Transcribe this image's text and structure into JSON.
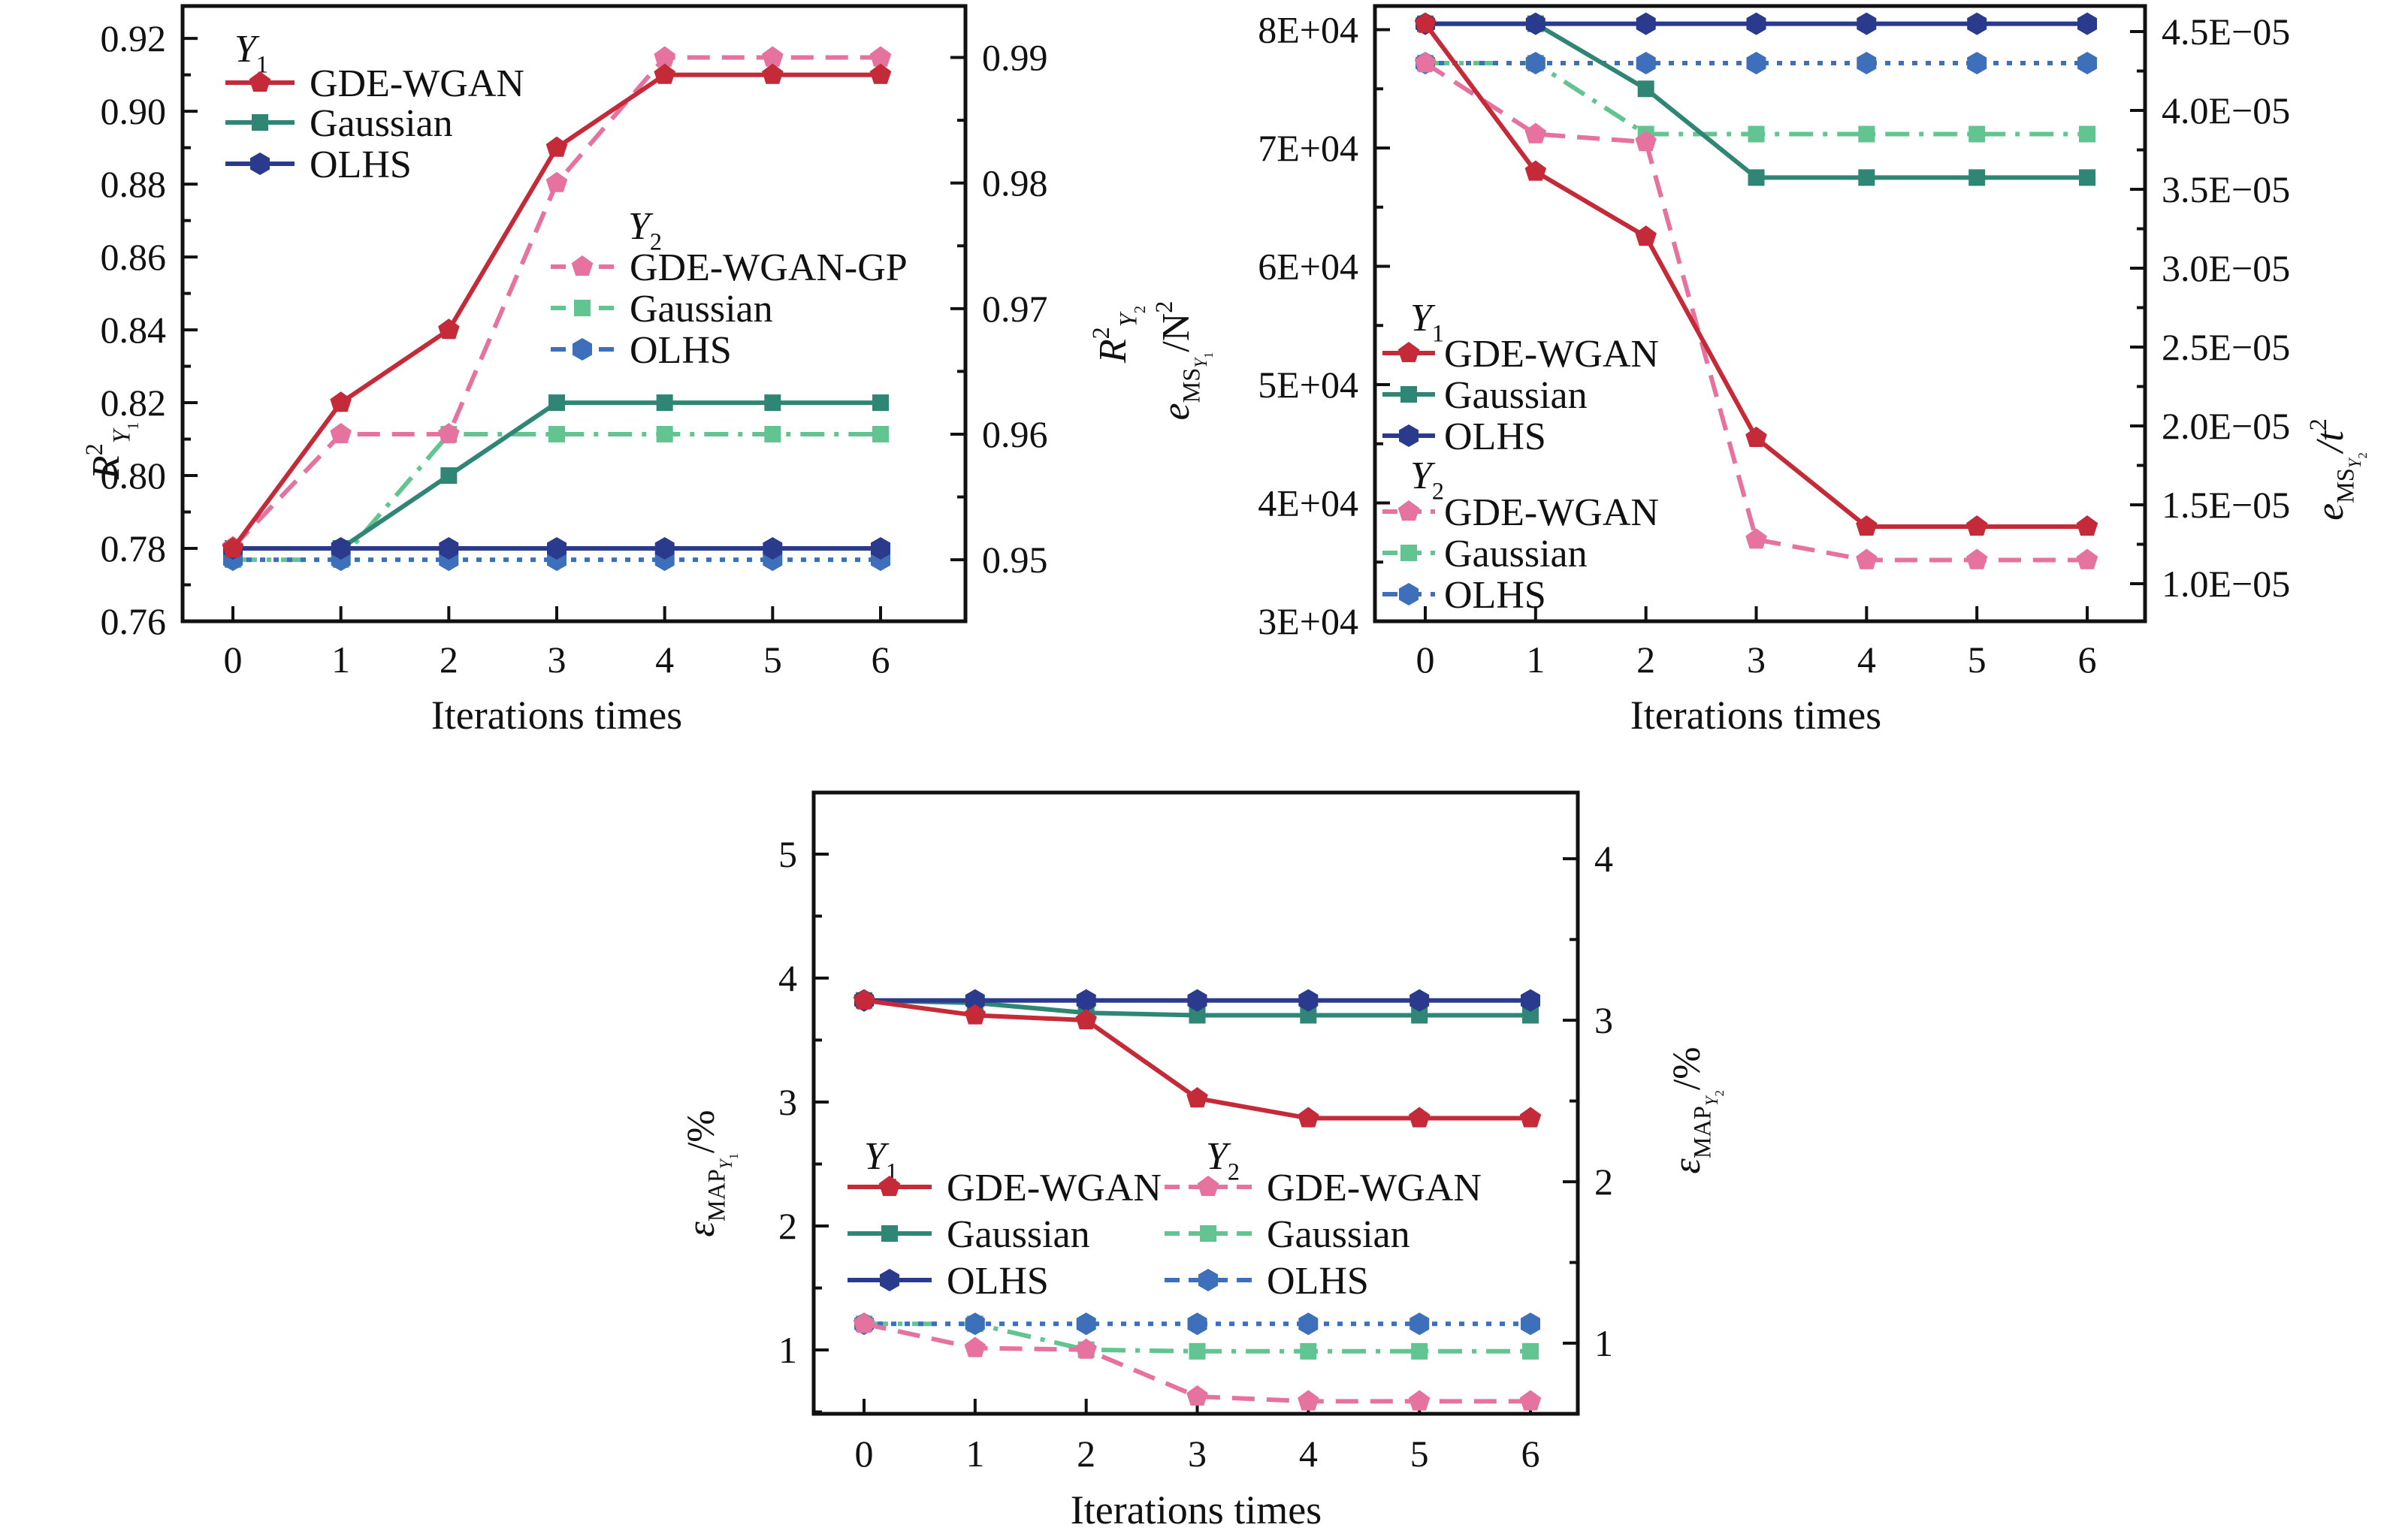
{
  "figure": {
    "background": "#ffffff"
  },
  "colors": {
    "red": "#c52a38",
    "teal": "#2f8674",
    "navy": "#2a3a8c",
    "pink": "#e5729f",
    "green": "#62c591",
    "blue": "#3d6fba",
    "ink": "#111111"
  },
  "chart_data": [
    {
      "id": "r2",
      "type": "line",
      "x": [
        0,
        1,
        2,
        3,
        4,
        5,
        6
      ],
      "x_tick_labels": [
        "0",
        "1",
        "2",
        "3",
        "4",
        "5",
        "6"
      ],
      "xlabel": "Iterations times",
      "left_axis": {
        "label_parts": [
          {
            "t": "R",
            "k": "b"
          },
          {
            "t": "2",
            "k": "sup"
          },
          {
            "t": "Y",
            "k": "subi"
          },
          {
            "t": "1",
            "k": "ssr"
          }
        ],
        "lim": [
          0.76,
          0.9289
        ],
        "ticks": [
          0.76,
          0.78,
          0.8,
          0.82,
          0.84,
          0.86,
          0.88,
          0.9,
          0.92
        ],
        "tick_labels": [
          "0.76",
          "0.78",
          "0.80",
          "0.82",
          "0.84",
          "0.86",
          "0.88",
          "0.90",
          "0.92"
        ],
        "minor_step": 0.01
      },
      "right_axis": {
        "label_parts": [
          {
            "t": "R",
            "k": "b"
          },
          {
            "t": "2",
            "k": "sup"
          },
          {
            "t": "Y",
            "k": "subi"
          },
          {
            "t": "2",
            "k": "ssr"
          }
        ],
        "lim": [
          0.9451,
          0.9941
        ],
        "ticks": [
          0.95,
          0.96,
          0.97,
          0.98,
          0.99
        ],
        "tick_labels": [
          "0.95",
          "0.96",
          "0.97",
          "0.98",
          "0.99"
        ],
        "minor_step": 0.005
      },
      "series": [
        {
          "id": "y2-gauss",
          "group": "Y2",
          "label": "Gaussian",
          "axis": "right",
          "color": "green",
          "dash": "dashdot",
          "marker": "square",
          "values": [
            0.95,
            0.95,
            0.96,
            0.96,
            0.96,
            0.96,
            0.96
          ]
        },
        {
          "id": "y2-olhs",
          "group": "Y2",
          "label": "OLHS",
          "axis": "right",
          "color": "blue",
          "dash": "dotted",
          "marker": "hexagon",
          "values": [
            0.95,
            0.95,
            0.95,
            0.95,
            0.95,
            0.95,
            0.95
          ]
        },
        {
          "id": "y1-gauss",
          "group": "Y1",
          "label": "Gaussian",
          "axis": "left",
          "color": "teal",
          "dash": "solid",
          "marker": "square",
          "values": [
            0.78,
            0.78,
            0.8,
            0.82,
            0.82,
            0.82,
            0.82
          ]
        },
        {
          "id": "y1-olhs",
          "group": "Y1",
          "label": "OLHS",
          "axis": "left",
          "color": "navy",
          "dash": "solid",
          "marker": "hexagon",
          "values": [
            0.78,
            0.78,
            0.78,
            0.78,
            0.78,
            0.78,
            0.78
          ]
        },
        {
          "id": "y2-wgan",
          "group": "Y2",
          "label": "GDE-WGAN-GP",
          "axis": "right",
          "color": "pink",
          "dash": "dashed",
          "marker": "pentagon",
          "values": [
            0.951,
            0.96,
            0.96,
            0.98,
            0.99,
            0.99,
            0.99
          ]
        },
        {
          "id": "y1-wgan",
          "group": "Y1",
          "label": "GDE-WGAN",
          "axis": "left",
          "color": "red",
          "dash": "solid",
          "marker": "pentagon",
          "values": [
            0.78,
            0.82,
            0.84,
            0.89,
            0.91,
            0.91,
            0.91
          ]
        }
      ],
      "legends": [
        {
          "title_parts": [
            {
              "t": "Y",
              "k": "b"
            },
            {
              "t": "1",
              "k": "sub"
            }
          ],
          "title_x": 312,
          "title_y": 82,
          "sample_x": 300,
          "sample_w": 92,
          "text_x": 412,
          "rows_y": [
            110,
            163,
            218
          ],
          "series": [
            "y1-wgan",
            "y1-gauss",
            "y1-olhs"
          ]
        },
        {
          "title_parts": [
            {
              "t": "Y",
              "k": "b"
            },
            {
              "t": "2",
              "k": "sub"
            }
          ],
          "title_x": 836,
          "title_y": 318,
          "sample_x": 733,
          "sample_w": 84,
          "text_x": 838,
          "rows_y": [
            355,
            410,
            465
          ],
          "series": [
            "y2-wgan",
            "y2-gauss",
            "y2-olhs"
          ]
        }
      ]
    },
    {
      "id": "ems",
      "type": "line",
      "x": [
        0,
        1,
        2,
        3,
        4,
        5,
        6
      ],
      "x_tick_labels": [
        "0",
        "1",
        "2",
        "3",
        "4",
        "5",
        "6"
      ],
      "xlabel": "Iterations times",
      "left_axis": {
        "label_parts": [
          {
            "t": "e",
            "k": "b"
          },
          {
            "t": "MS",
            "k": "sub"
          },
          {
            "t": "Y",
            "k": "ss"
          },
          {
            "t": "1",
            "k": "sss"
          },
          {
            "t": "/N",
            "k": "r"
          },
          {
            "t": "2",
            "k": "sup"
          }
        ],
        "lim": [
          30000,
          82000
        ],
        "ticks": [
          30000,
          40000,
          50000,
          60000,
          70000,
          80000
        ],
        "tick_labels": [
          "3E+04",
          "4E+04",
          "5E+04",
          "6E+04",
          "7E+04",
          "8E+04"
        ],
        "minor_step": 5000
      },
      "right_axis": {
        "label_parts": [
          {
            "t": "e",
            "k": "b"
          },
          {
            "t": "MS",
            "k": "sub"
          },
          {
            "t": "Y",
            "k": "ss"
          },
          {
            "t": "2",
            "k": "sss"
          },
          {
            "t": "/t",
            "k": "b"
          },
          {
            "t": "2",
            "k": "sup"
          }
        ],
        "lim": [
          7.62e-06,
          4.662e-05
        ],
        "ticks": [
          1e-05,
          1.5e-05,
          2e-05,
          2.5e-05,
          3e-05,
          3.5e-05,
          4e-05,
          4.5e-05
        ],
        "tick_labels": [
          "1.0E−05",
          "1.5E−05",
          "2.0E−05",
          "2.5E−05",
          "3.0E−05",
          "3.5E−05",
          "4.0E−05",
          "4.5E−05"
        ],
        "minor_step": 2.5e-06
      },
      "series": [
        {
          "id": "y2-gauss",
          "group": "Y2",
          "label": "Gaussian",
          "axis": "right",
          "color": "green",
          "dash": "dashdot",
          "marker": "square",
          "values": [
            4.3e-05,
            4.3e-05,
            3.85e-05,
            3.85e-05,
            3.85e-05,
            3.85e-05,
            3.85e-05
          ]
        },
        {
          "id": "y2-olhs",
          "group": "Y2",
          "label": "OLHS",
          "axis": "right",
          "color": "blue",
          "dash": "dotted",
          "marker": "hexagon",
          "values": [
            4.3e-05,
            4.3e-05,
            4.3e-05,
            4.3e-05,
            4.3e-05,
            4.3e-05,
            4.3e-05
          ]
        },
        {
          "id": "y1-gauss",
          "group": "Y1",
          "label": "Gaussian",
          "axis": "left",
          "color": "teal",
          "dash": "solid",
          "marker": "square",
          "values": [
            80500,
            80500,
            75000,
            67500,
            67500,
            67500,
            67500
          ]
        },
        {
          "id": "y1-olhs",
          "group": "Y1",
          "label": "OLHS",
          "axis": "left",
          "color": "navy",
          "dash": "solid",
          "marker": "hexagon",
          "values": [
            80500,
            80500,
            80500,
            80500,
            80500,
            80500,
            80500
          ]
        },
        {
          "id": "y2-wgan",
          "group": "Y2",
          "label": "GDE-WGAN",
          "axis": "right",
          "color": "pink",
          "dash": "dashed",
          "marker": "pentagon",
          "values": [
            4.3e-05,
            3.85e-05,
            3.8e-05,
            1.28e-05,
            1.15e-05,
            1.15e-05,
            1.15e-05
          ]
        },
        {
          "id": "y1-wgan",
          "group": "Y1",
          "label": "GDE-WGAN",
          "axis": "left",
          "color": "red",
          "dash": "solid",
          "marker": "pentagon",
          "values": [
            80500,
            68000,
            62500,
            45500,
            38000,
            38000,
            38000
          ]
        }
      ],
      "legends": [
        {
          "title_parts": [
            {
              "t": "Y",
              "k": "b"
            },
            {
              "t": "1",
              "k": "sub"
            }
          ],
          "title_x": 1877,
          "title_y": 440,
          "sample_x": 1840,
          "sample_w": 70,
          "text_x": 1922,
          "rows_y": [
            470,
            525,
            580
          ],
          "series": [
            "y1-wgan",
            "y1-gauss",
            "y1-olhs"
          ]
        },
        {
          "title_parts": [
            {
              "t": "Y",
              "k": "b"
            },
            {
              "t": "2",
              "k": "sub"
            }
          ],
          "title_x": 1877,
          "title_y": 650,
          "sample_x": 1840,
          "sample_w": 70,
          "text_x": 1922,
          "rows_y": [
            681,
            736,
            791
          ],
          "series": [
            "y2-wgan",
            "y2-gauss",
            "y2-olhs"
          ]
        }
      ]
    },
    {
      "id": "emap",
      "type": "line",
      "x": [
        0,
        1,
        2,
        3,
        4,
        5,
        6
      ],
      "x_tick_labels": [
        "0",
        "1",
        "2",
        "3",
        "4",
        "5",
        "6"
      ],
      "xlabel": "Iterations times",
      "left_axis": {
        "label_parts": [
          {
            "t": "ε",
            "k": "b"
          },
          {
            "t": "MAP",
            "k": "sub"
          },
          {
            "t": "Y",
            "k": "ss"
          },
          {
            "t": "1",
            "k": "sss"
          },
          {
            "t": "/%",
            "k": "r"
          }
        ],
        "lim": [
          0.485,
          5.497
        ],
        "ticks": [
          1,
          2,
          3,
          4,
          5
        ],
        "tick_labels": [
          "1",
          "2",
          "3",
          "4",
          "5"
        ],
        "minor_step": 0.5
      },
      "right_axis": {
        "label_parts": [
          {
            "t": "ε",
            "k": "b"
          },
          {
            "t": "MAP",
            "k": "sub"
          },
          {
            "t": "Y",
            "k": "ss"
          },
          {
            "t": "2",
            "k": "sss"
          },
          {
            "t": "/%",
            "k": "r"
          }
        ],
        "lim": [
          0.563,
          4.41
        ],
        "ticks": [
          1,
          2,
          3,
          4
        ],
        "tick_labels": [
          "1",
          "2",
          "3",
          "4"
        ],
        "minor_step": 0.5
      },
      "series": [
        {
          "id": "y2-gauss",
          "group": "Y2",
          "label": "Gaussian",
          "axis": "right",
          "color": "green",
          "dash": "dashdot",
          "marker": "square",
          "values": [
            1.12,
            1.12,
            0.96,
            0.95,
            0.95,
            0.95,
            0.95
          ]
        },
        {
          "id": "y2-olhs",
          "group": "Y2",
          "label": "OLHS",
          "axis": "right",
          "color": "blue",
          "dash": "dotted",
          "marker": "hexagon",
          "values": [
            1.12,
            1.12,
            1.12,
            1.12,
            1.12,
            1.12,
            1.12
          ]
        },
        {
          "id": "y1-gauss",
          "group": "Y1",
          "label": "Gaussian",
          "axis": "left",
          "color": "teal",
          "dash": "solid",
          "marker": "square",
          "values": [
            3.82,
            3.8,
            3.72,
            3.7,
            3.7,
            3.7,
            3.7
          ]
        },
        {
          "id": "y1-olhs",
          "group": "Y1",
          "label": "OLHS",
          "axis": "left",
          "color": "navy",
          "dash": "solid",
          "marker": "hexagon",
          "values": [
            3.82,
            3.82,
            3.82,
            3.82,
            3.82,
            3.82,
            3.82
          ]
        },
        {
          "id": "y2-wgan",
          "group": "Y2",
          "label": "GDE-WGAN",
          "axis": "right",
          "color": "pink",
          "dash": "dashed",
          "marker": "pentagon",
          "values": [
            1.12,
            0.97,
            0.96,
            0.67,
            0.64,
            0.64,
            0.64
          ]
        },
        {
          "id": "y1-wgan",
          "group": "Y1",
          "label": "GDE-WGAN",
          "axis": "left",
          "color": "red",
          "dash": "solid",
          "marker": "pentagon",
          "values": [
            3.82,
            3.7,
            3.66,
            3.03,
            2.87,
            2.87,
            2.87
          ]
        }
      ],
      "legends": [
        {
          "title_parts": [
            {
              "t": "Y",
              "k": "b"
            },
            {
              "t": "1",
              "k": "sub"
            }
          ],
          "title_x": 1150,
          "title_y": 1556,
          "sample_x": 1128,
          "sample_w": 112,
          "text_x": 1260,
          "rows_y": [
            1580,
            1642,
            1704
          ],
          "series": [
            "y1-wgan",
            "y1-gauss",
            "y1-olhs"
          ]
        },
        {
          "title_parts": [
            {
              "t": "Y",
              "k": "b"
            },
            {
              "t": "2",
              "k": "sub"
            }
          ],
          "title_x": 1605,
          "title_y": 1556,
          "sample_x": 1550,
          "sample_w": 116,
          "text_x": 1686,
          "rows_y": [
            1580,
            1642,
            1704
          ],
          "series": [
            "y2-wgan",
            "y2-gauss",
            "y2-olhs"
          ]
        }
      ]
    }
  ]
}
